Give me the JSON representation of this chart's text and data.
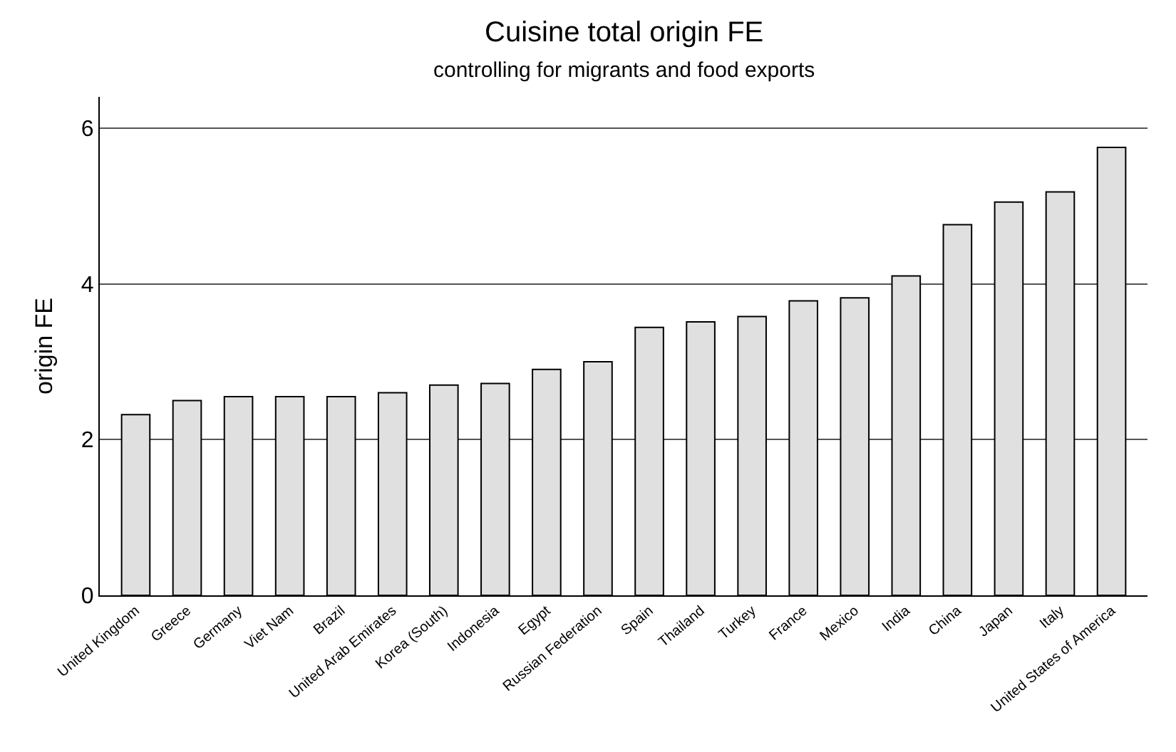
{
  "chart_data": {
    "type": "bar",
    "title": "Cuisine total origin FE",
    "subtitle": "controlling for migrants and food exports",
    "ylabel": "origin FE",
    "categories": [
      "United Kingdom",
      "Greece",
      "Germany",
      "Viet Nam",
      "Brazil",
      "United Arab Emirates",
      "Korea (South)",
      "Indonesia",
      "Egypt",
      "Russian Federation",
      "Spain",
      "Thailand",
      "Turkey",
      "France",
      "Mexico",
      "India",
      "China",
      "Japan",
      "Italy",
      "United States of America"
    ],
    "values": [
      2.32,
      2.5,
      2.55,
      2.55,
      2.55,
      2.6,
      2.7,
      2.72,
      2.9,
      3.0,
      3.44,
      3.51,
      3.58,
      3.78,
      3.82,
      4.1,
      4.76,
      5.05,
      5.18,
      5.75
    ],
    "color": "#e0e0e0",
    "ylim": [
      0,
      6.4
    ],
    "yticks": [
      0,
      2,
      4,
      6
    ],
    "grid": "y"
  }
}
